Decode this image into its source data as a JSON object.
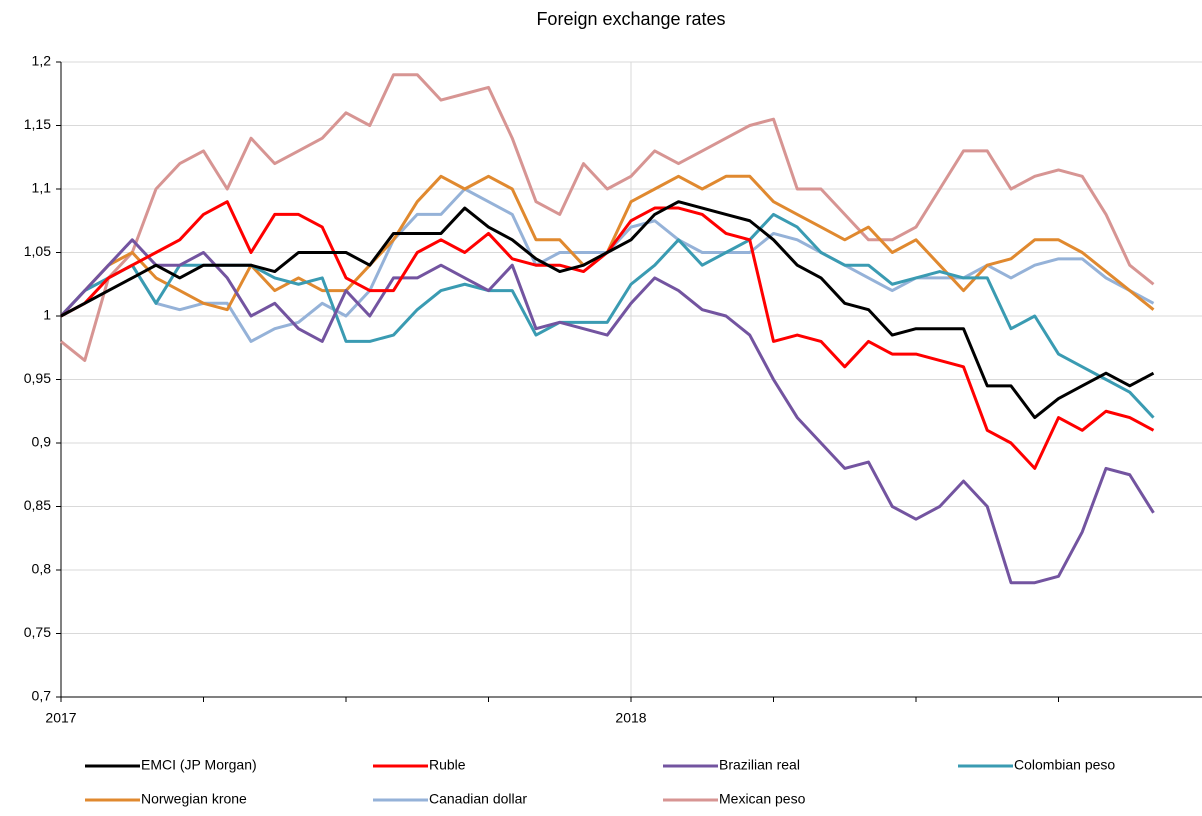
{
  "chart_data": {
    "type": "line",
    "title": "Foreign exchange rates",
    "categories": [
      "2017",
      null,
      null,
      null,
      null,
      null,
      null,
      null,
      null,
      null,
      null,
      null,
      null,
      null,
      null,
      null,
      null,
      null,
      null,
      null,
      null,
      null,
      null,
      null,
      "2018",
      null,
      null,
      null,
      null,
      null,
      null,
      null,
      null,
      null,
      null,
      null,
      null,
      null,
      null,
      null,
      null,
      null,
      null,
      null,
      null,
      null,
      null
    ],
    "ylim": [
      0.7,
      1.2
    ],
    "yticks": [
      {
        "value": 0.7,
        "label": "0,7"
      },
      {
        "value": 0.75,
        "label": "0,75"
      },
      {
        "value": 0.8,
        "label": "0,8"
      },
      {
        "value": 0.85,
        "label": "0,85"
      },
      {
        "value": 0.9,
        "label": "0,9"
      },
      {
        "value": 0.95,
        "label": "0,95"
      },
      1,
      {
        "value": 1.05,
        "label": "1,05"
      },
      {
        "value": 1.1,
        "label": "1,1"
      },
      {
        "value": 1.15,
        "label": "1,15"
      },
      {
        "value": 1.2,
        "label": "1,2"
      }
    ],
    "grid": true,
    "legend": "bottom",
    "series": [
      {
        "name": "EMCI (JP Morgan)",
        "color": "#000000",
        "values": [
          1.0,
          1.01,
          1.02,
          1.03,
          1.04,
          1.03,
          1.04,
          1.04,
          1.04,
          1.035,
          1.05,
          1.05,
          1.05,
          1.04,
          1.065,
          1.065,
          1.065,
          1.085,
          1.07,
          1.06,
          1.045,
          1.035,
          1.04,
          1.05,
          1.06,
          1.08,
          1.09,
          1.085,
          1.08,
          1.075,
          1.06,
          1.04,
          1.03,
          1.01,
          1.005,
          0.985,
          0.99,
          0.99,
          0.99,
          0.945,
          0.945,
          0.92,
          0.935,
          0.945,
          0.955,
          0.945,
          0.955
        ]
      },
      {
        "name": "Ruble",
        "color": "#ff0000",
        "values": [
          1.0,
          1.01,
          1.03,
          1.04,
          1.05,
          1.06,
          1.08,
          1.09,
          1.05,
          1.08,
          1.08,
          1.07,
          1.03,
          1.02,
          1.02,
          1.05,
          1.06,
          1.05,
          1.065,
          1.045,
          1.04,
          1.04,
          1.035,
          1.05,
          1.075,
          1.085,
          1.085,
          1.08,
          1.065,
          1.06,
          0.98,
          0.985,
          0.98,
          0.96,
          0.98,
          0.97,
          0.97,
          0.965,
          0.96,
          0.91,
          0.9,
          0.88,
          0.92,
          0.91,
          0.925,
          0.92,
          0.91
        ]
      },
      {
        "name": "Brazilian real",
        "color": "#7354a0",
        "values": [
          1.0,
          1.02,
          1.04,
          1.06,
          1.04,
          1.04,
          1.05,
          1.03,
          1.0,
          1.01,
          0.99,
          0.98,
          1.02,
          1.0,
          1.03,
          1.03,
          1.04,
          1.03,
          1.02,
          1.04,
          0.99,
          0.995,
          0.99,
          0.985,
          1.01,
          1.03,
          1.02,
          1.005,
          1.0,
          0.985,
          0.95,
          0.92,
          0.9,
          0.88,
          0.885,
          0.85,
          0.84,
          0.85,
          0.87,
          0.85,
          0.79,
          0.79,
          0.795,
          0.83,
          0.88,
          0.875,
          0.845
        ]
      },
      {
        "name": "Colombian peso",
        "color": "#3a9bb2",
        "values": [
          1.0,
          1.02,
          1.03,
          1.04,
          1.01,
          1.04,
          1.04,
          1.04,
          1.04,
          1.03,
          1.025,
          1.03,
          0.98,
          0.98,
          0.985,
          1.005,
          1.02,
          1.025,
          1.02,
          1.02,
          0.985,
          0.995,
          0.995,
          0.995,
          1.025,
          1.04,
          1.06,
          1.04,
          1.05,
          1.06,
          1.08,
          1.07,
          1.05,
          1.04,
          1.04,
          1.025,
          1.03,
          1.035,
          1.03,
          1.03,
          0.99,
          1.0,
          0.97,
          0.96,
          0.95,
          0.94,
          0.92
        ]
      },
      {
        "name": "Norwegian krone",
        "color": "#e0892f",
        "values": [
          1.0,
          1.02,
          1.04,
          1.05,
          1.03,
          1.02,
          1.01,
          1.005,
          1.04,
          1.02,
          1.03,
          1.02,
          1.02,
          1.04,
          1.06,
          1.09,
          1.11,
          1.1,
          1.11,
          1.1,
          1.06,
          1.06,
          1.04,
          1.05,
          1.09,
          1.1,
          1.11,
          1.1,
          1.11,
          1.11,
          1.09,
          1.08,
          1.07,
          1.06,
          1.07,
          1.05,
          1.06,
          1.04,
          1.02,
          1.04,
          1.045,
          1.06,
          1.06,
          1.05,
          1.035,
          1.02,
          1.005
        ]
      },
      {
        "name": "Canadian dollar",
        "color": "#95b2d8",
        "values": [
          1.0,
          1.02,
          1.03,
          1.04,
          1.01,
          1.005,
          1.01,
          1.01,
          0.98,
          0.99,
          0.995,
          1.01,
          1.0,
          1.02,
          1.06,
          1.08,
          1.08,
          1.1,
          1.09,
          1.08,
          1.04,
          1.05,
          1.05,
          1.05,
          1.07,
          1.075,
          1.06,
          1.05,
          1.05,
          1.05,
          1.065,
          1.06,
          1.05,
          1.04,
          1.03,
          1.02,
          1.03,
          1.03,
          1.03,
          1.04,
          1.03,
          1.04,
          1.045,
          1.045,
          1.03,
          1.02,
          1.01
        ]
      },
      {
        "name": "Mexican peso",
        "color": "#d79593",
        "values": [
          0.98,
          0.965,
          1.03,
          1.05,
          1.1,
          1.12,
          1.13,
          1.1,
          1.14,
          1.12,
          1.13,
          1.14,
          1.16,
          1.15,
          1.19,
          1.19,
          1.17,
          1.175,
          1.18,
          1.14,
          1.09,
          1.08,
          1.12,
          1.1,
          1.11,
          1.13,
          1.12,
          1.13,
          1.14,
          1.15,
          1.155,
          1.1,
          1.1,
          1.08,
          1.06,
          1.06,
          1.07,
          1.1,
          1.13,
          1.13,
          1.1,
          1.11,
          1.115,
          1.11,
          1.08,
          1.04,
          1.025
        ]
      }
    ]
  }
}
